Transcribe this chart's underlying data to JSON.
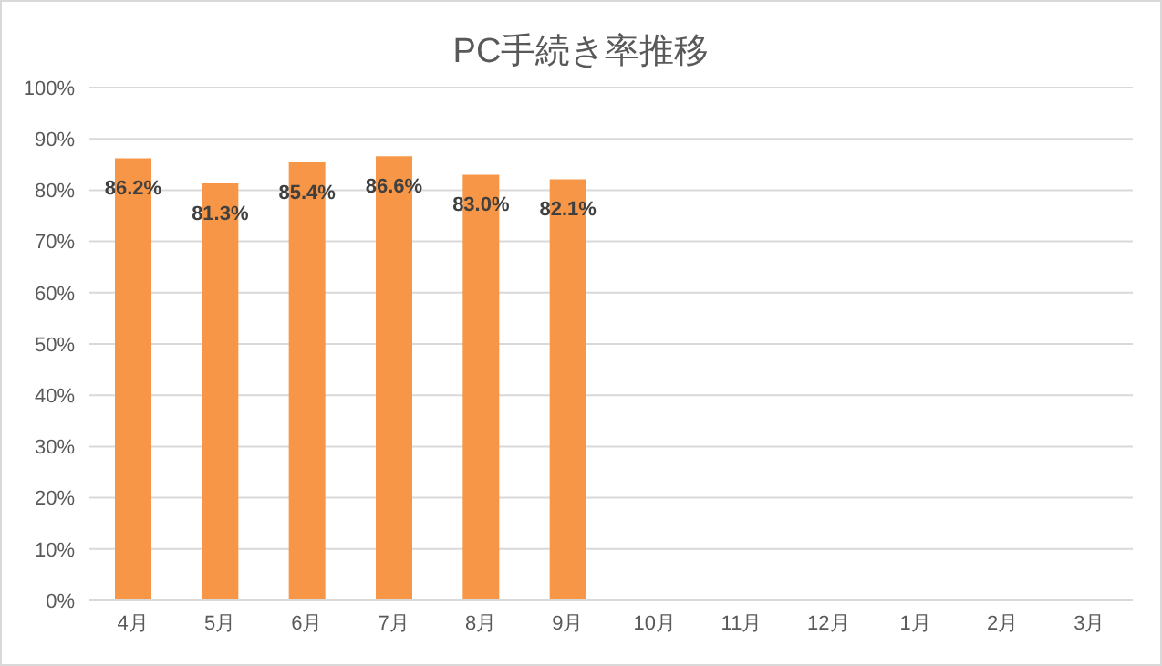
{
  "chart_data": {
    "type": "bar",
    "title": "PC手続き率推移",
    "categories": [
      "4月",
      "5月",
      "6月",
      "7月",
      "8月",
      "9月",
      "10月",
      "11月",
      "12月",
      "1月",
      "2月",
      "3月"
    ],
    "values": [
      86.2,
      81.3,
      85.4,
      86.6,
      83.0,
      82.1,
      null,
      null,
      null,
      null,
      null,
      null
    ],
    "value_labels": [
      "86.2%",
      "81.3%",
      "85.4%",
      "86.6%",
      "83.0%",
      "82.1%",
      null,
      null,
      null,
      null,
      null,
      null
    ],
    "color": "#f79646",
    "ylim": [
      0,
      100
    ],
    "yticks": [
      {
        "value": 0,
        "label": "0%"
      },
      {
        "value": 10,
        "label": "10%"
      },
      {
        "value": 20,
        "label": "20%"
      },
      {
        "value": 30,
        "label": "30%"
      },
      {
        "value": 40,
        "label": "40%"
      },
      {
        "value": 50,
        "label": "50%"
      },
      {
        "value": 60,
        "label": "60%"
      },
      {
        "value": 70,
        "label": "70%"
      },
      {
        "value": 80,
        "label": "80%"
      },
      {
        "value": 90,
        "label": "90%"
      },
      {
        "value": 100,
        "label": "100%"
      }
    ],
    "grid": "y",
    "legend": false
  }
}
